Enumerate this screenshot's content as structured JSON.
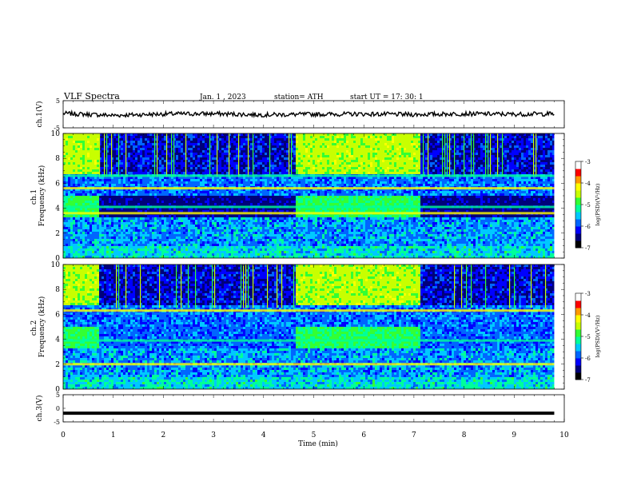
{
  "header": {
    "title": "VLF  Spectra",
    "date": "Jan.  1  , 2023",
    "station": "station= ATH",
    "start": "start  UT  =    17: 30: 1"
  },
  "colors": {
    "waveform": "#000000",
    "colormap": [
      "#000000",
      "#00007a",
      "#0000ff",
      "#0066ff",
      "#00c8ff",
      "#00ff9a",
      "#33ff33",
      "#c8ff00",
      "#ffff00",
      "#ff9900",
      "#ff0000",
      "#ffffff"
    ]
  },
  "chart_data": [
    {
      "type": "line",
      "panel": "ch1-waveform",
      "ylabel": "ch.1(V)",
      "ylim": [
        -5,
        5
      ],
      "ytick_labels": [
        "5",
        "-5"
      ],
      "xlim": [
        0,
        10
      ],
      "description": "noisy waveform centered near 0 V with small excursions",
      "x": [
        0.0,
        1.0,
        2.0,
        3.0,
        4.0,
        5.0,
        6.0,
        7.0,
        8.0,
        9.0,
        9.8
      ],
      "y": [
        0.3,
        -0.4,
        0.1,
        0.2,
        -0.2,
        0.0,
        0.1,
        -0.1,
        0.2,
        0.0,
        0.2
      ]
    },
    {
      "type": "heatmap",
      "panel": "ch1-spectrogram",
      "ylabel": "ch.1\nFrequency  (kHz)",
      "ylim": [
        0,
        10
      ],
      "ytick_labels": [
        "0",
        "2",
        "4",
        "6",
        "8",
        "10"
      ],
      "xlim": [
        0,
        10
      ],
      "colorbar": {
        "label": "log(PSD)(V²/Hz)",
        "range": [
          -7,
          -3
        ],
        "tick_labels": [
          "-3",
          "-4",
          "-5",
          "-6",
          "-7"
        ]
      },
      "bands_khz": [
        3.6,
        4.1,
        5.6,
        6.6
      ],
      "quiet_intervals_min": [
        [
          0.0,
          0.7
        ],
        [
          4.6,
          7.1
        ]
      ],
      "active_intervals_min": [
        [
          0.7,
          4.6
        ],
        [
          7.1,
          9.8
        ]
      ]
    },
    {
      "type": "heatmap",
      "panel": "ch2-spectrogram",
      "ylabel": "ch.2\nFrequency  (kHz)",
      "ylim": [
        0,
        10
      ],
      "ytick_labels": [
        "0",
        "2",
        "4",
        "6",
        "8",
        "10"
      ],
      "xlim": [
        0,
        10
      ],
      "colorbar": {
        "label": "log(PSD)(V²/Hz)",
        "range": [
          -7,
          -3
        ],
        "tick_labels": [
          "-3",
          "-4",
          "-5",
          "-6",
          "-7"
        ]
      },
      "bands_khz": [
        2.0,
        3.9,
        6.3
      ],
      "quiet_intervals_min": [
        [
          0.0,
          0.7
        ],
        [
          4.6,
          7.1
        ]
      ],
      "active_intervals_min": [
        [
          0.7,
          4.6
        ],
        [
          7.1,
          9.8
        ]
      ]
    },
    {
      "type": "line",
      "panel": "ch3-waveform",
      "ylabel": "ch.3(V)",
      "ylim": [
        -5,
        5
      ],
      "ytick_labels": [
        "5",
        "0",
        "-5"
      ],
      "xlim": [
        0,
        10
      ],
      "x": [
        0.0,
        9.8
      ],
      "y": [
        -1.8,
        -1.8
      ]
    }
  ],
  "xaxis": {
    "label": "Time  (min)",
    "tick_labels": [
      "0",
      "1",
      "2",
      "3",
      "4",
      "5",
      "6",
      "7",
      "8",
      "9",
      "10"
    ]
  }
}
